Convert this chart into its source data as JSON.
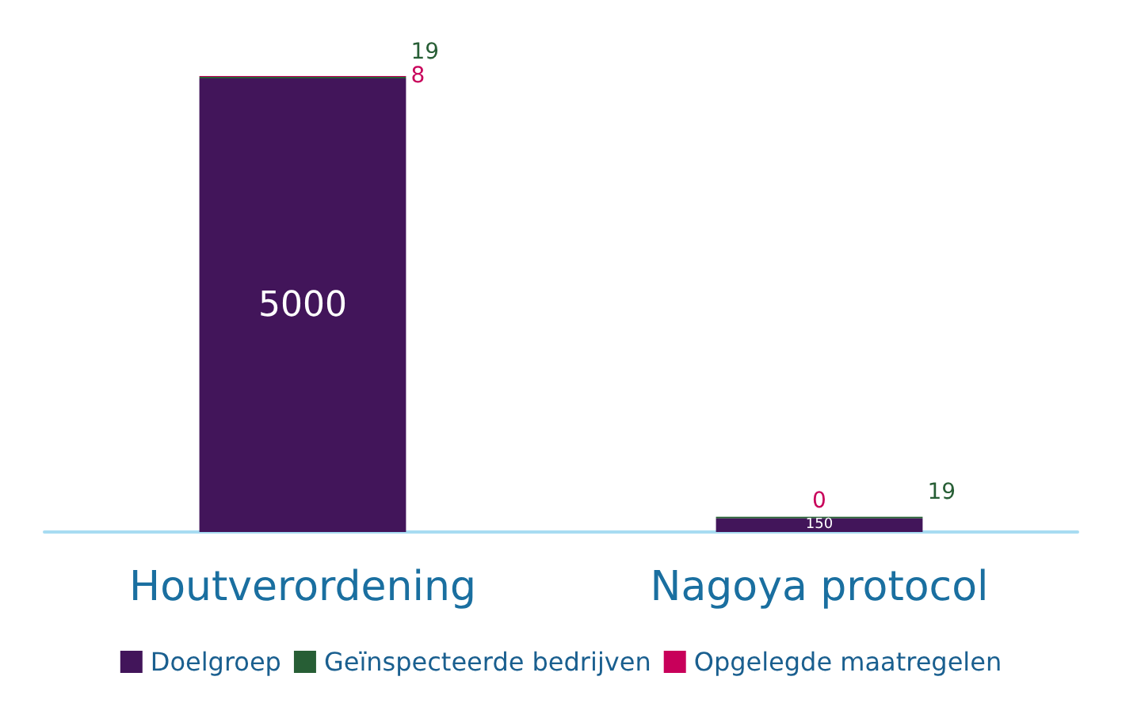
{
  "chart_data": {
    "type": "bar",
    "stacked": true,
    "categories": [
      "Houtverordening",
      "Nagoya protocol"
    ],
    "series": [
      {
        "name": "Doelgroep",
        "color": "#42155a",
        "values": [
          5000,
          150
        ]
      },
      {
        "name": "Geïnspecteerde bedrijven",
        "color": "#275e35",
        "values": [
          19,
          19
        ]
      },
      {
        "name": "Opgelegde maatregelen",
        "color": "#c8005a",
        "values": [
          8,
          0
        ]
      }
    ],
    "data_labels": true,
    "legend": "bottom"
  }
}
